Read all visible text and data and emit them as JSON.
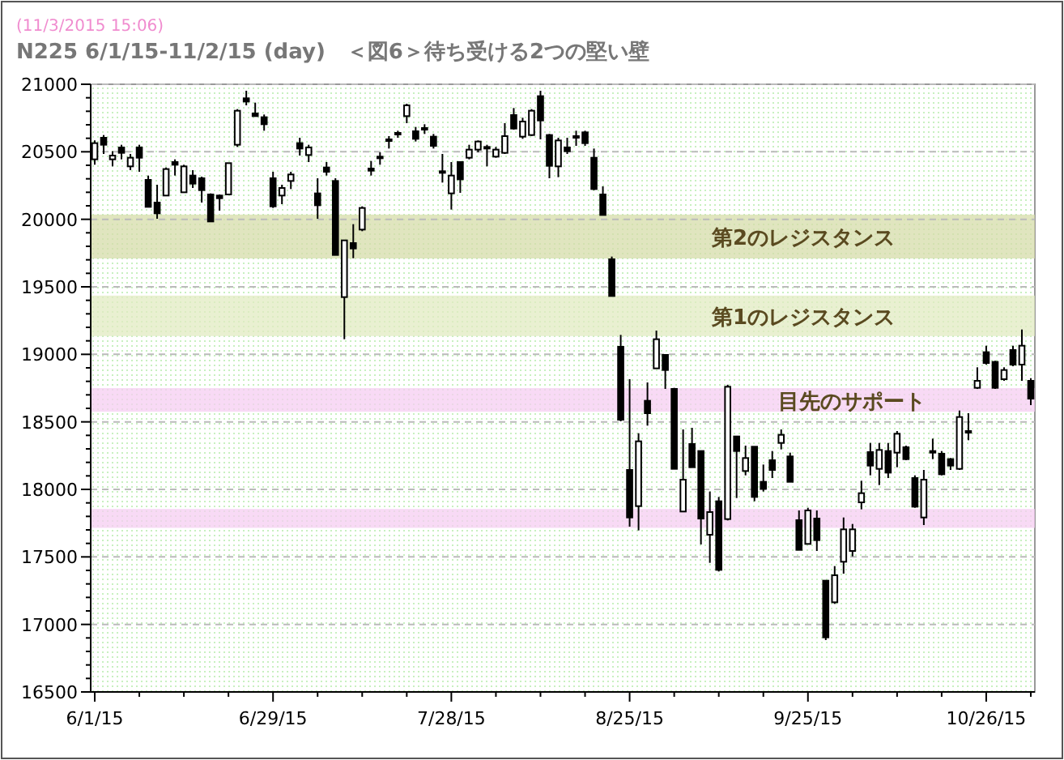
{
  "chart_data": {
    "type": "candlestick",
    "title": "N225  6/1/15-11/2/15 (day)　＜図6＞待ち受ける2つの堅い壁",
    "subtitle": "(11/3/2015 15:06)",
    "categories": [
      "6/1/15",
      null,
      null,
      null,
      null,
      null,
      null,
      null,
      null,
      null,
      null,
      null,
      null,
      null,
      null,
      null,
      null,
      null,
      null,
      null,
      "6/29/15",
      null,
      null,
      null,
      null,
      null,
      null,
      null,
      null,
      null,
      null,
      null,
      null,
      null,
      null,
      null,
      null,
      null,
      null,
      null,
      "7/28/15",
      null,
      null,
      null,
      null,
      null,
      null,
      null,
      null,
      null,
      null,
      null,
      null,
      null,
      null,
      null,
      null,
      null,
      null,
      null,
      "8/25/15",
      null,
      null,
      null,
      null,
      null,
      null,
      null,
      null,
      null,
      null,
      null,
      null,
      null,
      null,
      null,
      null,
      null,
      null,
      null,
      "9/25/15",
      null,
      null,
      null,
      null,
      null,
      null,
      null,
      null,
      null,
      null,
      null,
      null,
      null,
      null,
      null,
      null,
      null,
      null,
      null,
      "10/26/15",
      null,
      null,
      null,
      null,
      null
    ],
    "color": "#000000",
    "ohlc": [
      [
        20444,
        20584,
        20404,
        20564
      ],
      [
        20604,
        20624,
        20484,
        20552
      ],
      [
        20444,
        20504,
        20392,
        20472
      ],
      [
        20532,
        20552,
        20444,
        20492
      ],
      [
        20392,
        20484,
        20364,
        20456
      ],
      [
        20532,
        20552,
        20352,
        20456
      ],
      [
        20292,
        20324,
        20092,
        20092
      ],
      [
        20124,
        20256,
        20004,
        20044
      ],
      [
        20176,
        20384,
        20176,
        20372
      ],
      [
        20424,
        20444,
        20324,
        20404
      ],
      [
        20200,
        20404,
        20200,
        20392
      ],
      [
        20324,
        20364,
        20232,
        20264
      ],
      [
        20304,
        20316,
        20124,
        20216
      ],
      [
        20184,
        20192,
        19984,
        19984
      ],
      [
        20176,
        20184,
        20064,
        20156
      ],
      [
        20184,
        20416,
        20184,
        20416
      ],
      [
        20552,
        20816,
        20536,
        20804
      ],
      [
        20896,
        20952,
        20844,
        20872
      ],
      [
        20784,
        20864,
        20764,
        20764
      ],
      [
        20756,
        20776,
        20656,
        20704
      ],
      [
        20304,
        20352,
        20084,
        20096
      ],
      [
        20176,
        20256,
        20112,
        20232
      ],
      [
        20284,
        20352,
        20224,
        20332
      ],
      [
        20564,
        20604,
        20472,
        20524
      ],
      [
        20476,
        20552,
        20424,
        20532
      ],
      [
        20192,
        20304,
        20004,
        20104
      ],
      [
        20384,
        20424,
        20324,
        20352
      ],
      [
        20284,
        20304,
        19736,
        19736
      ],
      [
        19424,
        19844,
        19112,
        19844
      ],
      [
        19824,
        19964,
        19712,
        19784
      ],
      [
        19924,
        20096,
        19912,
        20084
      ],
      [
        20376,
        20432,
        20324,
        20360
      ],
      [
        20456,
        20496,
        20404,
        20464
      ],
      [
        20584,
        20616,
        20524,
        20592
      ],
      [
        20632,
        20656,
        20604,
        20640
      ],
      [
        20764,
        20856,
        20712,
        20844
      ],
      [
        20652,
        20684,
        20576,
        20596
      ],
      [
        20664,
        20704,
        20632,
        20676
      ],
      [
        20612,
        20632,
        20524,
        20544
      ],
      [
        20356,
        20484,
        20272,
        20344
      ],
      [
        20192,
        20424,
        20072,
        20324
      ],
      [
        20424,
        20424,
        20196,
        20296
      ],
      [
        20456,
        20552,
        20444,
        20516
      ],
      [
        20516,
        20584,
        20496,
        20576
      ],
      [
        20536,
        20552,
        20392,
        20524
      ],
      [
        20464,
        20536,
        20456,
        20516
      ],
      [
        20492,
        20712,
        20484,
        20616
      ],
      [
        20772,
        20824,
        20664,
        20672
      ],
      [
        20612,
        20752,
        20596,
        20724
      ],
      [
        20624,
        20816,
        20616,
        20804
      ],
      [
        20912,
        20952,
        20592,
        20732
      ],
      [
        20624,
        20632,
        20304,
        20396
      ],
      [
        20392,
        20604,
        20312,
        20584
      ],
      [
        20532,
        20604,
        20484,
        20504
      ],
      [
        20612,
        20656,
        20544,
        20616
      ],
      [
        20644,
        20656,
        20544,
        20564
      ],
      [
        20456,
        20524,
        20216,
        20224
      ],
      [
        20184,
        20244,
        20032,
        20032
      ],
      [
        19704,
        19724,
        19432,
        19432
      ],
      [
        19056,
        19144,
        18504,
        18516
      ],
      [
        18144,
        18816,
        17724,
        17792
      ],
      [
        17876,
        18416,
        17696,
        18356
      ],
      [
        18656,
        18792,
        18472,
        18564
      ],
      [
        18896,
        19176,
        18896,
        19112
      ],
      [
        18996,
        18996,
        18744,
        18884
      ],
      [
        18744,
        18752,
        18152,
        18152
      ],
      [
        17836,
        18444,
        17836,
        18072
      ],
      [
        18336,
        18456,
        18164,
        18164
      ],
      [
        18284,
        18284,
        17592,
        17784
      ],
      [
        17664,
        17984,
        17456,
        17832
      ],
      [
        17912,
        17944,
        17392,
        17404
      ],
      [
        17780,
        18775,
        17770,
        18760
      ],
      [
        18392,
        18392,
        17936,
        18284
      ],
      [
        18136,
        18324,
        18104,
        18232
      ],
      [
        18316,
        18316,
        17912,
        17944
      ],
      [
        18056,
        18184,
        17984,
        18004
      ],
      [
        18216,
        18284,
        18084,
        18144
      ],
      [
        18344,
        18444,
        18296,
        18404
      ],
      [
        18244,
        18272,
        18056,
        18056
      ],
      [
        17772,
        17844,
        17552,
        17552
      ],
      [
        17596,
        17864,
        17592,
        17844
      ],
      [
        17784,
        17844,
        17544,
        17624
      ],
      [
        17324,
        17324,
        16884,
        16904
      ],
      [
        17164,
        17432,
        17152,
        17364
      ],
      [
        17464,
        17792,
        17376,
        17704
      ],
      [
        17544,
        17744,
        17504,
        17704
      ],
      [
        17904,
        18064,
        17852,
        17972
      ],
      [
        18276,
        18344,
        18104,
        18176
      ],
      [
        18152,
        18344,
        18032,
        18292
      ],
      [
        18284,
        18344,
        18084,
        18124
      ],
      [
        18272,
        18432,
        18164,
        18412
      ],
      [
        18312,
        18324,
        18216,
        18224
      ],
      [
        18084,
        18104,
        17864,
        17872
      ],
      [
        17792,
        18144,
        17736,
        18072
      ],
      [
        18284,
        18376,
        18224,
        18280
      ],
      [
        18264,
        18284,
        18104,
        18112
      ],
      [
        18224,
        18232,
        18144,
        18176
      ],
      [
        18152,
        18584,
        18144,
        18536
      ],
      [
        18424,
        18564,
        18364,
        18432
      ],
      [
        18752,
        18904,
        18744,
        18804
      ],
      [
        19016,
        19064,
        18924,
        18936
      ],
      [
        18944,
        18952,
        18744,
        18752
      ],
      [
        18816,
        18904,
        18804,
        18884
      ],
      [
        19032,
        19064,
        18912,
        18924
      ],
      [
        18924,
        19184,
        18804,
        19064
      ],
      [
        18804,
        18824,
        18624,
        18672
      ]
    ],
    "ylim": [
      16500,
      21000
    ],
    "yticks": [
      16500,
      17000,
      17500,
      18000,
      18500,
      19000,
      19500,
      20000,
      20500,
      21000
    ],
    "grid": "y",
    "bands": [
      {
        "axis": "y",
        "from": 19710,
        "to": 20035,
        "label": "第2のレジスタンス",
        "color": "#d6dcaa"
      },
      {
        "axis": "y",
        "from": 19135,
        "to": 19435,
        "label": "第1のレジスタンス",
        "color": "#e2ebc2"
      },
      {
        "axis": "y",
        "from": 18575,
        "to": 18750,
        "label": "目先のサポート",
        "color": "#f6cdf2"
      },
      {
        "axis": "y",
        "from": 17715,
        "to": 17855,
        "color": "#f6cdf2"
      }
    ]
  }
}
